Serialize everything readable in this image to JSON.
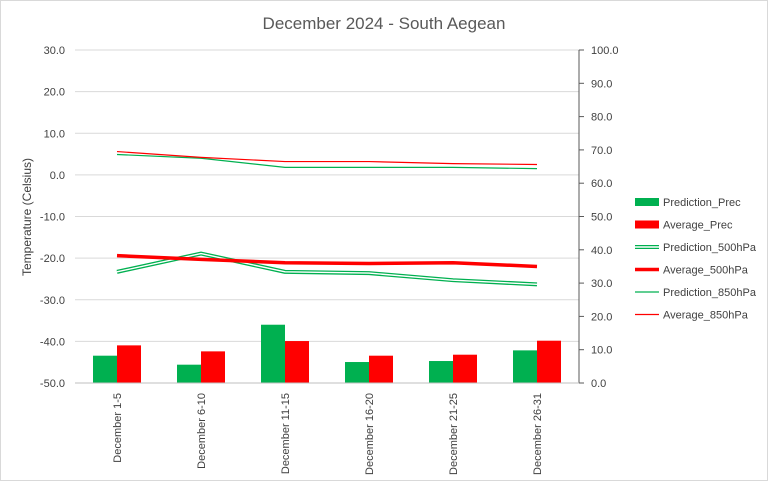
{
  "chart_data": {
    "type": "bar",
    "title": "December 2024 - South Aegean",
    "ylabel": "Temperature (Celsius)",
    "ylabel_right": "",
    "categories": [
      "December 1-5",
      "December 6-10",
      "December 11-15",
      "December 16-20",
      "December 21-25",
      "December 26-31"
    ],
    "y_left": {
      "min": -50,
      "max": 30,
      "step": 10,
      "ticks": [
        "30.0",
        "20.0",
        "10.0",
        "0.0",
        "-10.0",
        "-20.0",
        "-30.0",
        "-40.0",
        "-50.0"
      ]
    },
    "y_right": {
      "min": 0,
      "max": 100,
      "step": 10,
      "ticks": [
        "100.0",
        "90.0",
        "80.0",
        "70.0",
        "60.0",
        "50.0",
        "40.0",
        "30.0",
        "20.0",
        "10.0",
        "0.0"
      ]
    },
    "grid": true,
    "legend_position": "right",
    "bar_series": [
      {
        "name": "Prediction_Prec",
        "axis": "right",
        "color": "#00b050",
        "values": [
          8.2,
          5.5,
          17.5,
          6.3,
          6.6,
          9.8
        ]
      },
      {
        "name": "Average_Prec",
        "axis": "right",
        "color": "#ff0000",
        "values": [
          11.3,
          9.5,
          12.6,
          8.2,
          8.5,
          12.7
        ]
      }
    ],
    "line_series": [
      {
        "name": "Prediction_500hPa",
        "axis": "left",
        "color": "#00b050",
        "style": "double",
        "values": [
          -23.3,
          -18.9,
          -23.3,
          -23.6,
          -25.3,
          -26.3
        ]
      },
      {
        "name": "Average_500hPa",
        "axis": "left",
        "color": "#ff0000",
        "style": "thick",
        "values": [
          -19.4,
          -20.3,
          -21.1,
          -21.3,
          -21.1,
          -22.0
        ]
      },
      {
        "name": "Prediction_850hPa",
        "axis": "left",
        "color": "#00b050",
        "style": "thin",
        "values": [
          4.9,
          4.0,
          1.8,
          1.8,
          1.8,
          1.5
        ]
      },
      {
        "name": "Average_850hPa",
        "axis": "left",
        "color": "#ff0000",
        "style": "thin",
        "values": [
          5.6,
          4.2,
          3.2,
          3.2,
          2.7,
          2.5
        ]
      }
    ]
  }
}
